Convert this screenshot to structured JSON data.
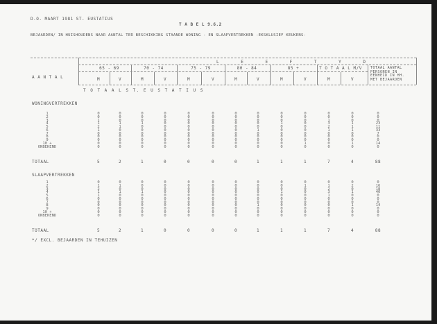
{
  "header": {
    "source": "D.O. MAART 1981 ST. EUSTATIUS",
    "table_no": "T A B E L  9.6.2",
    "title": "BEJAARDEN/ IN HUISHOUDENS NAAR AANTAL TER BESCHIKKING STAANDE WONING - EN SLAAPVERTREKKEN -EKSKLUSIEF KEUKENS-"
  },
  "table": {
    "row_header": "A A N T A L",
    "group_header": "L E E F T Y D",
    "age_groups": [
      "65 - 69",
      "70 - 74",
      "75 - 79",
      "80 - 84",
      "85 +",
      "T O T A A L M/V"
    ],
    "sex_labels": [
      "M",
      "V",
      "M",
      "V",
      "M",
      "V",
      "M",
      "V",
      "M",
      "V",
      "M",
      "V"
    ],
    "last_col_header": [
      "TOTAAL AANTAL",
      "PERSONEN IN",
      "EENHEID IN HH.",
      "MET BEJAARDEN"
    ],
    "region": "T O T A A L  S T. E U S T A T I U S",
    "row_labels": [
      "1",
      "2",
      "3",
      "4",
      "5",
      "6",
      "7",
      "8",
      "9",
      "10 +",
      "ONBEKEND"
    ],
    "total_label": "TOTAAL",
    "sections": [
      {
        "title": "WONINGVERTREKKEN",
        "columns": [
          [
            0,
            0,
            1,
            1,
            2,
            1,
            0,
            0,
            0,
            0,
            0
          ],
          [
            0,
            0,
            0,
            1,
            1,
            0,
            0,
            0,
            0,
            0,
            0
          ],
          [
            0,
            0,
            0,
            1,
            0,
            0,
            0,
            0,
            0,
            0,
            0
          ],
          [
            0,
            0,
            0,
            0,
            0,
            0,
            0,
            0,
            0,
            0,
            0
          ],
          [
            0,
            0,
            0,
            0,
            0,
            0,
            0,
            0,
            0,
            0,
            0
          ],
          [
            0,
            0,
            0,
            0,
            0,
            0,
            0,
            0,
            0,
            0,
            0
          ],
          [
            0,
            0,
            0,
            0,
            0,
            0,
            0,
            0,
            0,
            0,
            0
          ],
          [
            0,
            0,
            0,
            0,
            0,
            1,
            0,
            0,
            0,
            0,
            0
          ],
          [
            0,
            0,
            0,
            1,
            0,
            0,
            0,
            0,
            0,
            0,
            0
          ],
          [
            0,
            0,
            0,
            0,
            0,
            0,
            0,
            0,
            0,
            1,
            0
          ],
          [
            0,
            0,
            1,
            3,
            2,
            1,
            0,
            0,
            0,
            0,
            0
          ],
          [
            0,
            0,
            0,
            1,
            1,
            1,
            0,
            0,
            0,
            1,
            0
          ],
          [
            0,
            0,
            0,
            23,
            11,
            33,
            7,
            0,
            0,
            14,
            0
          ]
        ],
        "totals": [
          "5",
          "2",
          "1",
          "0",
          "0",
          "0",
          "0",
          "1",
          "1",
          "1",
          "7",
          "4",
          "88"
        ]
      },
      {
        "title": "SLAAPVERTREKKEN",
        "columns": [
          [
            0,
            1,
            2,
            1,
            1,
            0,
            0,
            0,
            0,
            0,
            0
          ],
          [
            0,
            1,
            0,
            1,
            0,
            0,
            0,
            0,
            0,
            0,
            0
          ],
          [
            0,
            0,
            0,
            1,
            0,
            0,
            0,
            0,
            0,
            0,
            0
          ],
          [
            0,
            0,
            0,
            0,
            0,
            0,
            0,
            0,
            0,
            0,
            0
          ],
          [
            0,
            0,
            0,
            0,
            0,
            0,
            0,
            0,
            0,
            0,
            0
          ],
          [
            0,
            0,
            0,
            0,
            0,
            0,
            0,
            0,
            0,
            0,
            0
          ],
          [
            0,
            0,
            0,
            0,
            0,
            0,
            0,
            0,
            0,
            0,
            0
          ],
          [
            0,
            0,
            0,
            0,
            0,
            0,
            0,
            1,
            0,
            0,
            0
          ],
          [
            0,
            0,
            0,
            1,
            0,
            0,
            0,
            0,
            0,
            0,
            0
          ],
          [
            0,
            1,
            0,
            0,
            0,
            0,
            0,
            0,
            0,
            0,
            0
          ],
          [
            0,
            1,
            2,
            3,
            1,
            0,
            0,
            0,
            0,
            0,
            0
          ],
          [
            0,
            2,
            0,
            1,
            0,
            0,
            0,
            1,
            0,
            0,
            0
          ],
          [
            0,
            16,
            18,
            40,
            0,
            0,
            0,
            14,
            0,
            0,
            0
          ]
        ],
        "totals": [
          "5",
          "2",
          "1",
          "0",
          "0",
          "0",
          "0",
          "1",
          "1",
          "1",
          "7",
          "4",
          "88"
        ]
      }
    ]
  },
  "footnote": "*/ EXCL. BEJAARDEN IN TEHUIZEN"
}
